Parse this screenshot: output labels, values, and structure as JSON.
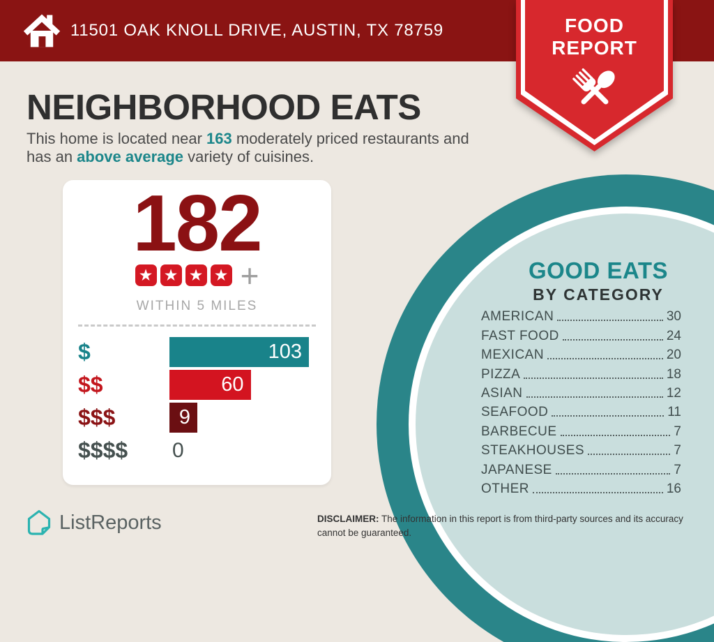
{
  "header": {
    "address": "11501 OAK KNOLL DRIVE, AUSTIN, TX 78759",
    "badge_line1": "FOOD",
    "badge_line2": "REPORT"
  },
  "intro": {
    "title": "NEIGHBORHOOD EATS",
    "line1_pre": "This home is located near ",
    "line1_highlight": "163",
    "line1_post": " moderately priced restaurants and",
    "line2_pre": "has an ",
    "line2_highlight": "above average",
    "line2_post": " variety of cuisines."
  },
  "stats_card": {
    "count": "182",
    "star_count": 4,
    "plus": "+",
    "radius_label": "WITHIN 5 MILES"
  },
  "chart_data": {
    "type": "bar",
    "orientation": "horizontal",
    "categories": [
      "$",
      "$$",
      "$$$",
      "$$$$"
    ],
    "values": [
      103,
      60,
      9,
      0
    ],
    "xlim": [
      0,
      103
    ],
    "bar_colors": [
      "#19838a",
      "#d31420",
      "#6b0f12",
      null
    ],
    "label_colors": [
      "#19838a",
      "#c3161d",
      "#8b1315",
      "#45504f"
    ],
    "value_label_position": "inside-end",
    "title": "",
    "xlabel": "",
    "ylabel": ""
  },
  "good_eats": {
    "title": "GOOD EATS",
    "subtitle": "BY CATEGORY",
    "items": [
      {
        "label": "AMERICAN",
        "value": 30
      },
      {
        "label": "FAST FOOD",
        "value": 24
      },
      {
        "label": "MEXICAN",
        "value": 20
      },
      {
        "label": "PIZZA",
        "value": 18
      },
      {
        "label": "ASIAN",
        "value": 12
      },
      {
        "label": "SEAFOOD",
        "value": 11
      },
      {
        "label": "BARBECUE",
        "value": 7
      },
      {
        "label": "STEAKHOUSES",
        "value": 7
      },
      {
        "label": "JAPANESE",
        "value": 7
      },
      {
        "label": "OTHER",
        "value": 16
      }
    ]
  },
  "footer": {
    "brand": "ListReports",
    "disclaimer_label": "DISCLAIMER:",
    "disclaimer_text": " The information in this report is from third-party sources and its accuracy cannot be guaranteed."
  },
  "colors": {
    "header_red": "#8a1413",
    "ribbon_red": "#d7282d",
    "accent_teal": "#1b868a",
    "ring_teal": "#2a8589",
    "pale_teal": "#c9dedd",
    "count_maroon": "#8b1113",
    "star_red": "#d41823",
    "background": "#ede8e1",
    "logo_teal": "#2bb3b0"
  }
}
